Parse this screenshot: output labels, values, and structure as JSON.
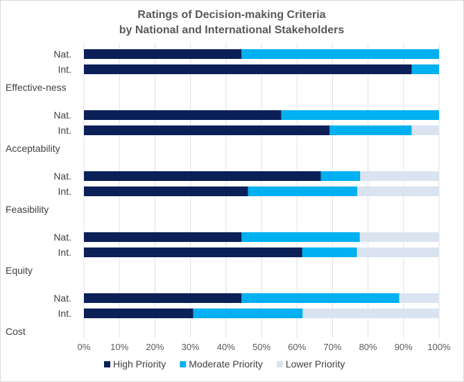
{
  "chart_data": {
    "type": "bar",
    "orientation": "horizontal",
    "stacked": true,
    "title": "Ratings of Decision-making Criteria",
    "subtitle": "by National and International Stakeholders",
    "xlabel": "",
    "ylabel": "",
    "xlim": [
      0,
      100
    ],
    "x_ticks": [
      "0%",
      "10%",
      "20%",
      "30%",
      "40%",
      "50%",
      "60%",
      "70%",
      "80%",
      "90%",
      "100%"
    ],
    "groups": [
      {
        "name": "Effective-ness",
        "bars": [
          {
            "label": "Nat.",
            "values": [
              44.4,
              55.6,
              0
            ]
          },
          {
            "label": "Int.",
            "values": [
              92.3,
              7.7,
              0
            ]
          }
        ]
      },
      {
        "name": "Acceptability",
        "bars": [
          {
            "label": "Nat.",
            "values": [
              55.6,
              44.4,
              0
            ]
          },
          {
            "label": "Int.",
            "values": [
              69.2,
              23.1,
              7.7
            ]
          }
        ]
      },
      {
        "name": "Feasibility",
        "bars": [
          {
            "label": "Nat.",
            "values": [
              66.7,
              11.1,
              22.2
            ]
          },
          {
            "label": "Int.",
            "values": [
              46.2,
              30.8,
              23.0
            ]
          }
        ]
      },
      {
        "name": "Equity",
        "bars": [
          {
            "label": "Nat.",
            "values": [
              44.4,
              33.3,
              22.3
            ]
          },
          {
            "label": "Int.",
            "values": [
              61.5,
              15.4,
              23.1
            ]
          }
        ]
      },
      {
        "name": "Cost",
        "bars": [
          {
            "label": "Nat.",
            "values": [
              44.4,
              44.4,
              11.2
            ]
          },
          {
            "label": "Int.",
            "values": [
              30.8,
              30.8,
              38.4
            ]
          }
        ]
      }
    ],
    "series": [
      {
        "name": "High Priority",
        "color": "#0b2057"
      },
      {
        "name": "Moderate Priority",
        "color": "#00b0f0"
      },
      {
        "name": "Lower Priority",
        "color": "#dae3f0"
      }
    ],
    "legend_position": "bottom"
  }
}
